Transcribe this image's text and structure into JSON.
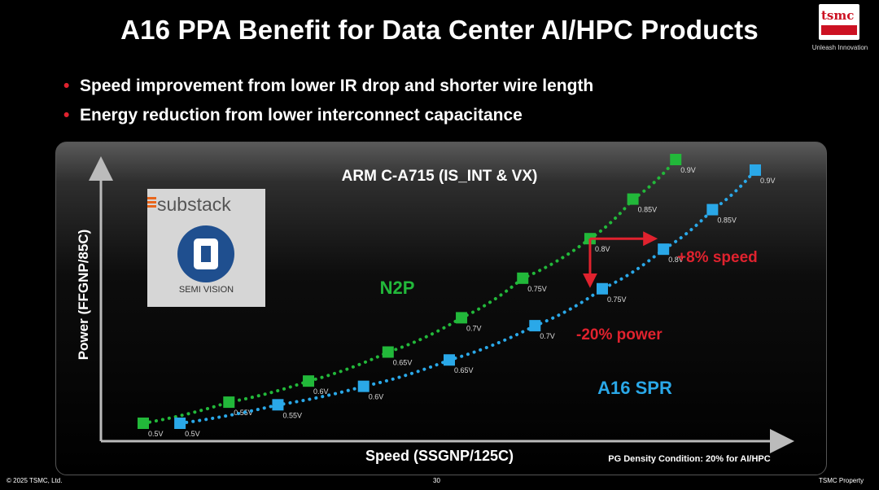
{
  "slide": {
    "title": "A16 PPA Benefit for Data Center AI/HPC Products",
    "bullets": [
      "Speed improvement from lower IR drop and shorter wire length",
      "Energy reduction from lower interconnect capacitance"
    ],
    "logo": {
      "text": "tsmc",
      "tagline": "Unleash Innovation"
    },
    "watermark": {
      "brand": "substack",
      "name": "SEMI VISION"
    },
    "footer": {
      "copyright": "© 2025 TSMC, Ltd.",
      "page": "30",
      "property": "TSMC Property"
    }
  },
  "chart_data": {
    "type": "scatter",
    "title": "ARM C-A715 (IS_INT & VX)",
    "xlabel": "Speed (SSGNP/125C)",
    "ylabel": "Power (FFGNP/85C)",
    "note": "PG Density Condition: 20% for AI/HPC",
    "x_unit": "relative",
    "y_unit": "relative",
    "series": [
      {
        "name": "N2P",
        "color": "#22b83a",
        "points": [
          {
            "label": "0.5V",
            "x": 0.0,
            "y": 0.0
          },
          {
            "label": "0.55V",
            "x": 0.14,
            "y": 0.08
          },
          {
            "label": "0.6V",
            "x": 0.27,
            "y": 0.16
          },
          {
            "label": "0.65V",
            "x": 0.4,
            "y": 0.27
          },
          {
            "label": "0.7V",
            "x": 0.52,
            "y": 0.4
          },
          {
            "label": "0.75V",
            "x": 0.62,
            "y": 0.55
          },
          {
            "label": "0.8V",
            "x": 0.73,
            "y": 0.7
          },
          {
            "label": "0.85V",
            "x": 0.8,
            "y": 0.85
          },
          {
            "label": "0.9V",
            "x": 0.87,
            "y": 1.0
          }
        ]
      },
      {
        "name": "A16 SPR",
        "color": "#2aa8e8",
        "points": [
          {
            "label": "0.5V",
            "x": 0.06,
            "y": 0.0
          },
          {
            "label": "0.55V",
            "x": 0.22,
            "y": 0.07
          },
          {
            "label": "0.6V",
            "x": 0.36,
            "y": 0.14
          },
          {
            "label": "0.65V",
            "x": 0.5,
            "y": 0.24
          },
          {
            "label": "0.7V",
            "x": 0.64,
            "y": 0.37
          },
          {
            "label": "0.75V",
            "x": 0.75,
            "y": 0.51
          },
          {
            "label": "0.8V",
            "x": 0.85,
            "y": 0.66
          },
          {
            "label": "0.85V",
            "x": 0.93,
            "y": 0.81
          },
          {
            "label": "0.9V",
            "x": 1.0,
            "y": 0.96
          }
        ]
      }
    ],
    "annotations": {
      "speed": "+8% speed",
      "power": "-20% power",
      "color": "#e0222e"
    }
  }
}
